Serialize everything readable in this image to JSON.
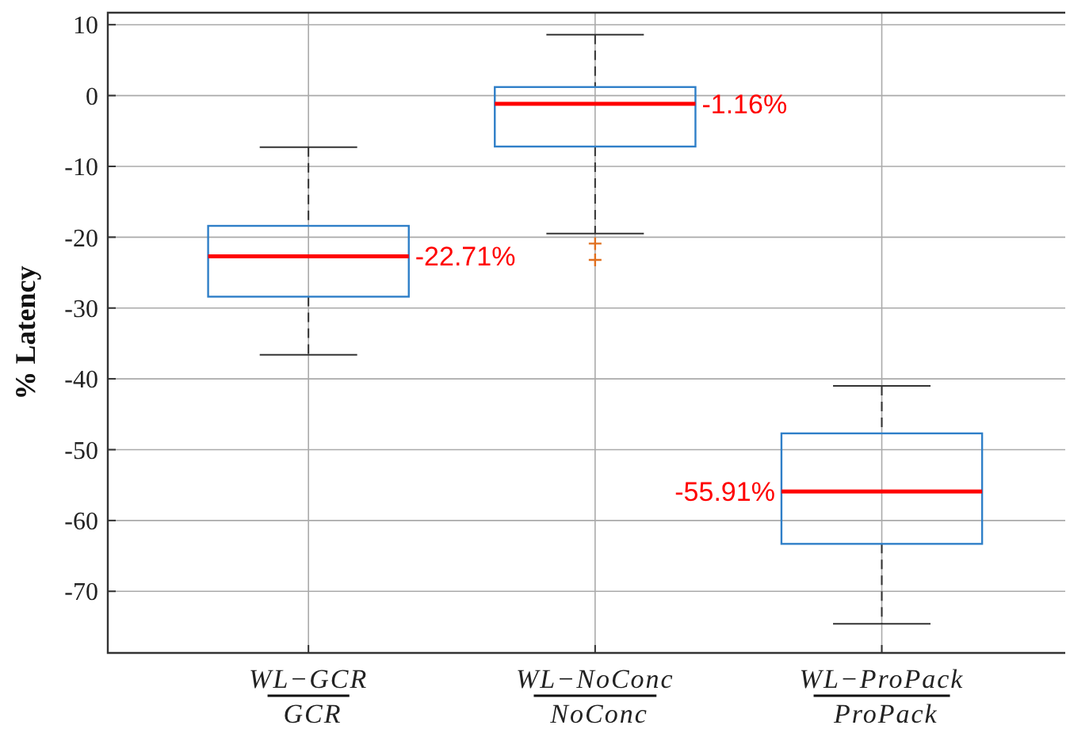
{
  "chart_data": {
    "type": "box",
    "ylabel": "% Latency",
    "categories": [
      "WL−GCR GCR",
      "WL−NoConc NoConc",
      "WL−ProPack ProPack"
    ],
    "boxes": [
      {
        "low": -36.6,
        "q1": -28.4,
        "median": -22.71,
        "q3": -18.4,
        "high": -7.3
      },
      {
        "low": -19.5,
        "q1": -7.2,
        "median": -1.16,
        "q3": 1.2,
        "high": 8.6,
        "outliers": [
          -20.9,
          -23.2
        ]
      },
      {
        "low": -74.6,
        "q1": -63.3,
        "median": -55.91,
        "q3": -47.7,
        "high": -41.0
      }
    ],
    "value_labels": [
      "-22.71%",
      "-1.16%",
      "-55.91%"
    ],
    "color": "#2f7fc8",
    "ylim": [
      -78.7,
      11.7
    ],
    "yticks": [
      -70,
      -60,
      -50,
      -40,
      -30,
      -20,
      -10,
      0,
      10
    ],
    "grid": true,
    "marker": "cross"
  }
}
